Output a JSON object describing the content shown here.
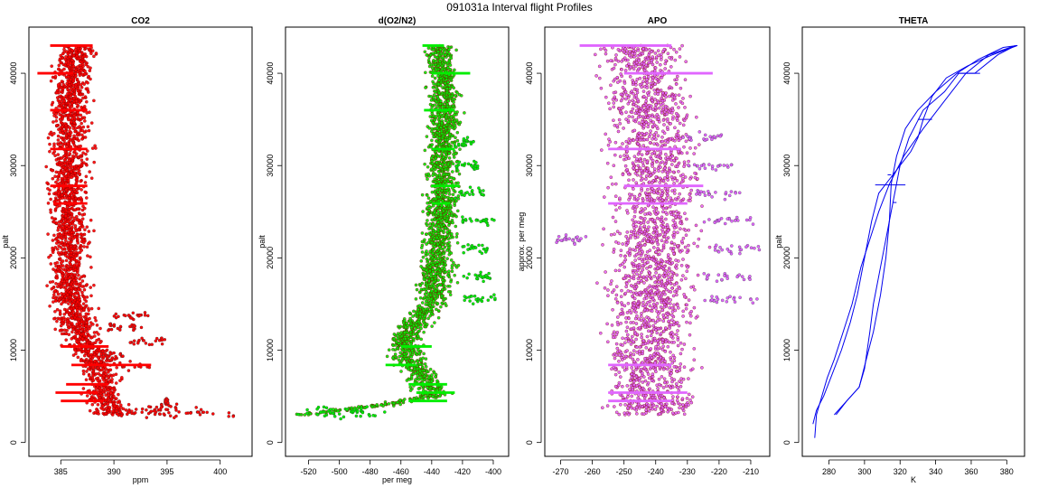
{
  "figure": {
    "title": "091031a   Interval flight Profiles"
  },
  "chart_data": [
    {
      "type": "scatter",
      "title": "CO2",
      "xlabel": "ppm",
      "ylabel": "palt",
      "xlim": [
        382,
        403
      ],
      "ylim": [
        -1500,
        45000
      ],
      "xticks": [
        385,
        390,
        395,
        400
      ],
      "yticks": [
        0,
        10000,
        20000,
        30000,
        40000
      ],
      "series": [
        {
          "color": "#ff0000",
          "profile": [
            [
              3000,
              390.0
            ],
            [
              5000,
              388.8
            ],
            [
              7000,
              389.0
            ],
            [
              9000,
              388.0
            ],
            [
              11000,
              387.0
            ],
            [
              13000,
              386.5
            ],
            [
              15000,
              386.0
            ],
            [
              17000,
              385.9
            ],
            [
              20000,
              385.7
            ],
            [
              24000,
              385.8
            ],
            [
              28000,
              385.6
            ],
            [
              32000,
              385.9
            ],
            [
              36000,
              386.0
            ],
            [
              40000,
              386.2
            ],
            [
              43000,
              386.5
            ]
          ],
          "spread": 1.2,
          "excursions": [
            {
              "y": 8300,
              "x0": 387.0,
              "x1": 393.5
            },
            {
              "y": 9500,
              "x0": 388.5,
              "x1": 391.0
            },
            {
              "y": 11000,
              "x0": 391.5,
              "x1": 395.0
            },
            {
              "y": 12500,
              "x0": 389.0,
              "x1": 393.0
            },
            {
              "y": 13800,
              "x0": 390.0,
              "x1": 393.5
            },
            {
              "y": 3050,
              "x0": 390.0,
              "x1": 402.0
            },
            {
              "y": 3250,
              "x0": 391.0,
              "x1": 399.5
            },
            {
              "y": 3700,
              "x0": 393.0,
              "x1": 396.0
            },
            {
              "y": 4400,
              "x0": 394.8,
              "x1": 395.1
            }
          ],
          "spikes": [
            {
              "y": 43000,
              "x0": 384.0,
              "x1": 388.0
            },
            {
              "y": 40000,
              "x0": 382.8,
              "x1": 386.2
            },
            {
              "y": 36000,
              "x0": 384.0,
              "x1": 387.5
            },
            {
              "y": 31800,
              "x0": 384.0,
              "x1": 387.5
            },
            {
              "y": 27800,
              "x0": 384.0,
              "x1": 387.5
            },
            {
              "y": 25900,
              "x0": 384.3,
              "x1": 387.5
            },
            {
              "y": 10400,
              "x0": 385.0,
              "x1": 389.5
            },
            {
              "y": 8400,
              "x0": 386.0,
              "x1": 393.5
            },
            {
              "y": 6300,
              "x0": 385.5,
              "x1": 389.5
            },
            {
              "y": 5400,
              "x0": 384.5,
              "x1": 388.5
            },
            {
              "y": 4500,
              "x0": 385.0,
              "x1": 389.0
            }
          ]
        }
      ]
    },
    {
      "type": "scatter",
      "title": "d(O2/N2)",
      "xlabel": "per meg",
      "ylabel": "palt",
      "xlim": [
        -535,
        -390
      ],
      "ylim": [
        -1500,
        45000
      ],
      "xticks": [
        -520,
        -500,
        -480,
        -460,
        -440,
        -420,
        -400
      ],
      "yticks": [
        0,
        10000,
        20000,
        30000,
        40000
      ],
      "series": [
        {
          "color": "#00ee00",
          "profile": [
            [
              3000,
              -520.0
            ],
            [
              3500,
              -500.0
            ],
            [
              4000,
              -475.0
            ],
            [
              5000,
              -440.0
            ],
            [
              7000,
              -445.0
            ],
            [
              9000,
              -455.0
            ],
            [
              11000,
              -458.0
            ],
            [
              13000,
              -450.0
            ],
            [
              15000,
              -440.0
            ],
            [
              18000,
              -437.0
            ],
            [
              22000,
              -435.0
            ],
            [
              26000,
              -433.0
            ],
            [
              30000,
              -433.0
            ],
            [
              34000,
              -432.0
            ],
            [
              38000,
              -432.0
            ],
            [
              42000,
              -435.0
            ],
            [
              43000,
              -435.0
            ]
          ],
          "spread": 7,
          "excursions": [
            {
              "y": 15500,
              "x0": -420.0,
              "x1": -397.0
            },
            {
              "y": 18000,
              "x0": -420.0,
              "x1": -400.0
            },
            {
              "y": 21000,
              "x0": -420.0,
              "x1": -402.0
            },
            {
              "y": 24000,
              "x0": -420.0,
              "x1": -399.0
            },
            {
              "y": 27000,
              "x0": -425.0,
              "x1": -405.0
            },
            {
              "y": 30000,
              "x0": -425.0,
              "x1": -410.0
            },
            {
              "y": 32500,
              "x0": -425.0,
              "x1": -412.0
            },
            {
              "y": 3100,
              "x0": -528.0,
              "x1": -470.0
            },
            {
              "y": 3400,
              "x0": -515.0,
              "x1": -480.0
            }
          ],
          "spikes": [
            {
              "y": 43000,
              "x0": -446.0,
              "x1": -432.0
            },
            {
              "y": 40000,
              "x0": -440.0,
              "x1": -415.0
            },
            {
              "y": 36000,
              "x0": -445.0,
              "x1": -425.0
            },
            {
              "y": 31800,
              "x0": -440.0,
              "x1": -425.0
            },
            {
              "y": 27800,
              "x0": -440.0,
              "x1": -422.0
            },
            {
              "y": 25900,
              "x0": -440.0,
              "x1": -428.0
            },
            {
              "y": 10400,
              "x0": -460.0,
              "x1": -440.0
            },
            {
              "y": 8400,
              "x0": -470.0,
              "x1": -450.0
            },
            {
              "y": 6300,
              "x0": -455.0,
              "x1": -430.0
            },
            {
              "y": 5400,
              "x0": -450.0,
              "x1": -425.0
            },
            {
              "y": 4500,
              "x0": -455.0,
              "x1": -430.0
            }
          ]
        }
      ]
    },
    {
      "type": "scatter",
      "title": "APO",
      "xlabel": "",
      "ylabel": "approx. per meg",
      "xlim": [
        -275,
        -204
      ],
      "ylim": [
        -1500,
        45000
      ],
      "xticks": [
        -270,
        -260,
        -250,
        -240,
        -230,
        -220,
        -210
      ],
      "yticks": [
        0,
        10000,
        20000,
        30000,
        40000
      ],
      "series": [
        {
          "color": "#e066ff",
          "profile": [
            [
              3000,
              -242.0
            ],
            [
              10000,
              -242.0
            ],
            [
              20000,
              -240.0
            ],
            [
              30000,
              -240.0
            ],
            [
              43000,
              -245.0
            ]
          ],
          "spread": 9,
          "excursions": [
            {
              "y": 15500,
              "x0": -225.0,
              "x1": -208.0
            },
            {
              "y": 18000,
              "x0": -225.0,
              "x1": -210.0
            },
            {
              "y": 21000,
              "x0": -222.0,
              "x1": -207.0
            },
            {
              "y": 24000,
              "x0": -225.0,
              "x1": -208.0
            },
            {
              "y": 27000,
              "x0": -228.0,
              "x1": -212.0
            },
            {
              "y": 30000,
              "x0": -230.0,
              "x1": -215.0
            },
            {
              "y": 33000,
              "x0": -232.0,
              "x1": -218.0
            },
            {
              "y": 22000,
              "x0": -272.0,
              "x1": -262.0
            }
          ],
          "spikes": [
            {
              "y": 43000,
              "x0": -264.0,
              "x1": -235.0
            },
            {
              "y": 40000,
              "x0": -250.0,
              "x1": -222.0
            },
            {
              "y": 31800,
              "x0": -255.0,
              "x1": -232.0
            },
            {
              "y": 27800,
              "x0": -250.0,
              "x1": -225.0
            },
            {
              "y": 25900,
              "x0": -255.0,
              "x1": -230.0
            },
            {
              "y": 8400,
              "x0": -255.0,
              "x1": -235.0
            },
            {
              "y": 5400,
              "x0": -255.0,
              "x1": -230.0
            },
            {
              "y": 4500,
              "x0": -255.0,
              "x1": -235.0
            }
          ]
        }
      ]
    },
    {
      "type": "line",
      "title": "THETA",
      "xlabel": "K",
      "ylabel": "palt",
      "xlim": [
        265,
        390
      ],
      "ylim": [
        -1500,
        45000
      ],
      "xticks": [
        280,
        300,
        320,
        340,
        360,
        380
      ],
      "yticks": [
        0,
        10000,
        20000,
        30000,
        40000
      ],
      "series": [
        {
          "name": "",
          "color": "#0000ee",
          "points": [
            [
              272,
              500
            ],
            [
              273,
              3000
            ],
            [
              276,
              5000
            ],
            [
              279,
              7000
            ],
            [
              283,
              9000
            ],
            [
              288,
              12000
            ],
            [
              293,
              15000
            ],
            [
              298,
              19000
            ],
            [
              303,
              22000
            ],
            [
              308,
              25000
            ],
            [
              314,
              28000
            ],
            [
              322,
              31000
            ],
            [
              333,
              34000
            ],
            [
              345,
              37000
            ],
            [
              357,
              40000
            ],
            [
              370,
              42000
            ],
            [
              385,
              43000
            ]
          ]
        },
        {
          "name": "",
          "color": "#0000ee",
          "points": [
            [
              385,
              43000
            ],
            [
              375,
              42000
            ],
            [
              362,
              40000
            ],
            [
              353,
              40000
            ],
            [
              345,
              38000
            ],
            [
              333,
              36000
            ],
            [
              325,
              33000
            ],
            [
              320,
              30000
            ],
            [
              317,
              27000
            ],
            [
              314,
              24000
            ],
            [
              311,
              21000
            ],
            [
              308,
              18000
            ],
            [
              305,
              15000
            ],
            [
              303,
              12000
            ],
            [
              300,
              8000
            ],
            [
              297,
              6000
            ],
            [
              290,
              4500
            ],
            [
              284,
              3000
            ]
          ]
        },
        {
          "name": "",
          "color": "#0000ee",
          "points": [
            [
              283,
              3000
            ],
            [
              290,
              4500
            ],
            [
              297,
              6000
            ],
            [
              301,
              9000
            ],
            [
              305,
              12000
            ],
            [
              309,
              16000
            ],
            [
              312,
              20000
            ],
            [
              314,
              24000
            ],
            [
              315,
              28000
            ],
            [
              318,
              31000
            ],
            [
              323,
              34000
            ],
            [
              330,
              36000
            ],
            [
              340,
              38000
            ],
            [
              352,
              40000
            ],
            [
              364,
              41500
            ],
            [
              378,
              42800
            ],
            [
              386,
              43000
            ]
          ]
        },
        {
          "name": "",
          "color": "#0000ee",
          "points": [
            [
              386,
              43000
            ],
            [
              372,
              42000
            ],
            [
              358,
              40800
            ],
            [
              346,
              39500
            ],
            [
              338,
              37500
            ],
            [
              333,
              35000
            ],
            [
              330,
              33000
            ],
            [
              326,
              31500
            ],
            [
              320,
              30000
            ],
            [
              314,
              28500
            ],
            [
              308,
              27000
            ],
            [
              304,
              24000
            ],
            [
              300,
              20000
            ],
            [
              296,
              16000
            ],
            [
              292,
              13000
            ],
            [
              287,
              10000
            ],
            [
              281,
              7000
            ],
            [
              277,
              5000
            ],
            [
              273,
              3500
            ],
            [
              271,
              2000
            ]
          ]
        }
      ],
      "spikes": [
        {
          "y": 40000,
          "x0": 352.0,
          "x1": 365.0
        },
        {
          "y": 27900,
          "x0": 306.0,
          "x1": 323.0
        },
        {
          "y": 26000,
          "x0": 316.0,
          "x1": 318.0
        },
        {
          "y": 29000,
          "x0": 313.0,
          "x1": 315.0
        },
        {
          "y": 35000,
          "x0": 330.0,
          "x1": 338.0
        }
      ]
    }
  ]
}
